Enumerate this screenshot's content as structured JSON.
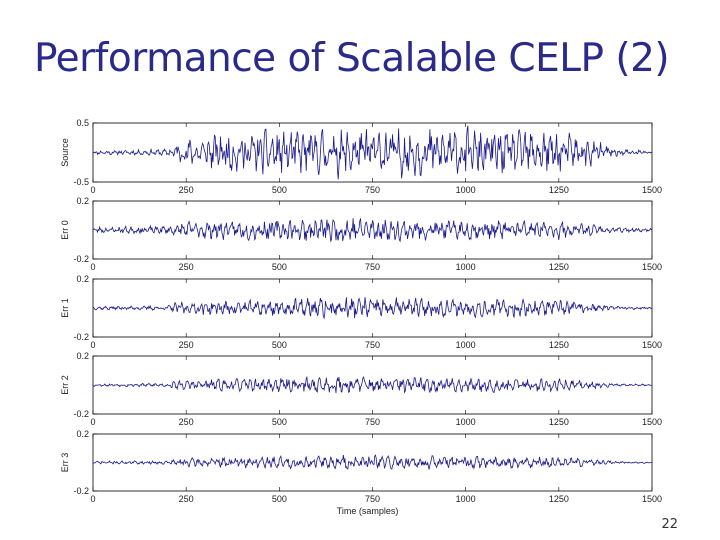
{
  "slide": {
    "title": "Performance of Scalable CELP (2)",
    "page_number": "22"
  },
  "chart_data": [
    {
      "type": "line",
      "ylabel": "Source",
      "xlim": [
        0,
        1500
      ],
      "ylim": [
        -0.5,
        0.5
      ],
      "yticks": [
        "0.5",
        "-0.5"
      ],
      "xticks": [
        "0",
        "250",
        "500",
        "750",
        "1000",
        "1250",
        "1500"
      ],
      "envelope": [
        [
          0,
          0.03
        ],
        [
          200,
          0.05
        ],
        [
          230,
          0.18
        ],
        [
          400,
          0.32
        ],
        [
          700,
          0.36
        ],
        [
          1000,
          0.36
        ],
        [
          1250,
          0.32
        ],
        [
          1350,
          0.2
        ],
        [
          1400,
          0.06
        ],
        [
          1500,
          0.03
        ]
      ],
      "seed": 11,
      "color": "#1a1a8c"
    },
    {
      "type": "line",
      "ylabel": "Err 0",
      "xlim": [
        0,
        1500
      ],
      "ylim": [
        -0.2,
        0.2
      ],
      "yticks": [
        "0.2",
        "-0.2"
      ],
      "xticks": [
        "0",
        "250",
        "500",
        "750",
        "1000",
        "1250",
        "1500"
      ],
      "envelope": [
        [
          0,
          0.02
        ],
        [
          200,
          0.025
        ],
        [
          230,
          0.05
        ],
        [
          450,
          0.06
        ],
        [
          700,
          0.085
        ],
        [
          900,
          0.06
        ],
        [
          1250,
          0.055
        ],
        [
          1350,
          0.03
        ],
        [
          1400,
          0.015
        ],
        [
          1500,
          0.01
        ]
      ],
      "seed": 23,
      "color": "#1a1a8c"
    },
    {
      "type": "line",
      "ylabel": "Err 1",
      "xlim": [
        0,
        1500
      ],
      "ylim": [
        -0.2,
        0.2
      ],
      "yticks": [
        "0.2",
        "-0.2"
      ],
      "xticks": [
        "0",
        "250",
        "500",
        "750",
        "1000",
        "1250",
        "1500"
      ],
      "envelope": [
        [
          0,
          0.01
        ],
        [
          200,
          0.015
        ],
        [
          230,
          0.04
        ],
        [
          450,
          0.05
        ],
        [
          700,
          0.07
        ],
        [
          900,
          0.055
        ],
        [
          1250,
          0.05
        ],
        [
          1350,
          0.025
        ],
        [
          1400,
          0.01
        ],
        [
          1500,
          0.008
        ]
      ],
      "seed": 37,
      "color": "#1a1a8c"
    },
    {
      "type": "line",
      "ylabel": "Err 2",
      "xlim": [
        0,
        1500
      ],
      "ylim": [
        -0.2,
        0.2
      ],
      "yticks": [
        "0.2",
        "-0.2"
      ],
      "xticks": [
        "0",
        "250",
        "500",
        "750",
        "1000",
        "1250",
        "1500"
      ],
      "envelope": [
        [
          0,
          0.008
        ],
        [
          200,
          0.012
        ],
        [
          230,
          0.03
        ],
        [
          450,
          0.04
        ],
        [
          700,
          0.055
        ],
        [
          900,
          0.045
        ],
        [
          1250,
          0.04
        ],
        [
          1350,
          0.02
        ],
        [
          1400,
          0.008
        ],
        [
          1500,
          0.006
        ]
      ],
      "seed": 53,
      "color": "#1a1a8c"
    },
    {
      "type": "line",
      "ylabel": "Err 3",
      "xlim": [
        0,
        1500
      ],
      "ylim": [
        -0.2,
        0.2
      ],
      "yticks": [
        "0.2",
        "-0.2"
      ],
      "xticks": [
        "0",
        "250",
        "500",
        "750",
        "1000",
        "1250",
        "1500"
      ],
      "xlabel": "Time (samples)",
      "envelope": [
        [
          0,
          0.008
        ],
        [
          200,
          0.012
        ],
        [
          230,
          0.025
        ],
        [
          450,
          0.035
        ],
        [
          700,
          0.045
        ],
        [
          900,
          0.04
        ],
        [
          1250,
          0.035
        ],
        [
          1350,
          0.018
        ],
        [
          1400,
          0.007
        ],
        [
          1500,
          0.005
        ]
      ],
      "seed": 71,
      "color": "#1a1a8c"
    }
  ]
}
